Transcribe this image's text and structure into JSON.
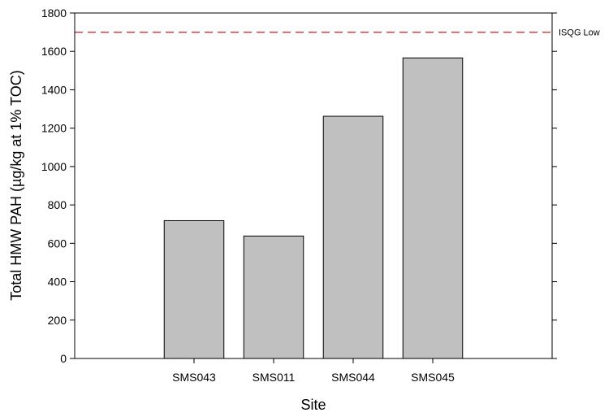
{
  "chart_data": {
    "type": "bar",
    "categories": [
      "SMS043",
      "SMS011",
      "SMS044",
      "SMS045"
    ],
    "values": [
      718,
      638,
      1262,
      1566
    ],
    "title": "",
    "xlabel": "Site",
    "ylabel": "Total HMW PAH (µg/kg at 1% TOC)",
    "ylim": [
      0,
      1800
    ],
    "yticks": [
      0,
      200,
      400,
      600,
      800,
      1000,
      1200,
      1400,
      1600,
      1800
    ],
    "grid": false,
    "bar_color": "#c0c0c0",
    "bar_edge_color": "#000000",
    "reference_lines": [
      {
        "label": "ISQG Low",
        "value": 1700,
        "color": "#e8302c",
        "style": "dashed"
      }
    ]
  }
}
